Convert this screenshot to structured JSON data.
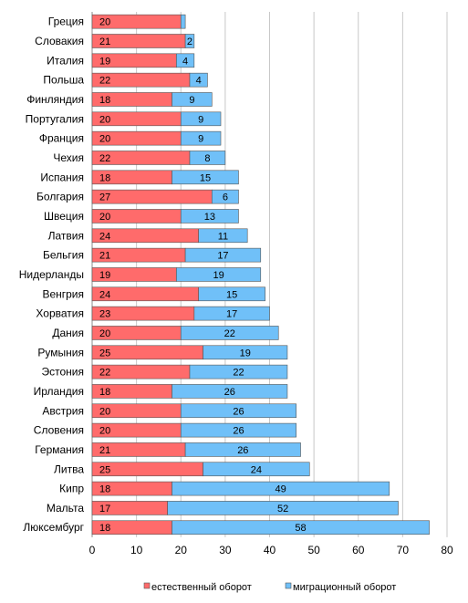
{
  "chart_data": {
    "type": "bar",
    "orientation": "horizontal",
    "stacked": true,
    "categories": [
      "Греция",
      "Словакия",
      "Италия",
      "Польша",
      "Финляндия",
      "Португалия",
      "Франция",
      "Чехия",
      "Испания",
      "Болгария",
      "Швеция",
      "Латвия",
      "Бельгия",
      "Нидерланды",
      "Венгрия",
      "Хорватия",
      "Дания",
      "Румыния",
      "Эстония",
      "Ирландия",
      "Австрия",
      "Словения",
      "Германия",
      "Литва",
      "Кипр",
      "Мальта",
      "Люксембург"
    ],
    "series": [
      {
        "name": "естественный оборот",
        "color": "#ff6b6b",
        "values": [
          20,
          21,
          19,
          22,
          18,
          20,
          20,
          22,
          18,
          27,
          20,
          24,
          21,
          19,
          24,
          23,
          20,
          25,
          22,
          18,
          20,
          20,
          21,
          25,
          18,
          17,
          18
        ]
      },
      {
        "name": "миграционный оборот",
        "color": "#70c0f8",
        "values": [
          1,
          2,
          4,
          4,
          9,
          9,
          9,
          8,
          15,
          6,
          13,
          11,
          17,
          19,
          15,
          17,
          22,
          19,
          22,
          26,
          26,
          26,
          26,
          24,
          49,
          52,
          58
        ]
      }
    ],
    "data_labels": {
      "естественный оборот": [
        "20",
        "21",
        "19",
        "22",
        "18",
        "20",
        "20",
        "22",
        "18",
        "27",
        "20",
        "24",
        "21",
        "19",
        "24",
        "23",
        "20",
        "25",
        "22",
        "18",
        "20",
        "20",
        "21",
        "25",
        "18",
        "17",
        "18"
      ],
      "миграционный оборот": [
        "",
        "2",
        "4",
        "4",
        "9",
        "9",
        "9",
        "8",
        "15",
        "6",
        "13",
        "11",
        "17",
        "19",
        "15",
        "17",
        "22",
        "19",
        "22",
        "26",
        "26",
        "26",
        "26",
        "24",
        "49",
        "52",
        "58"
      ]
    },
    "xlim": [
      0,
      80
    ],
    "xticks": [
      "0",
      "10",
      "20",
      "30",
      "40",
      "50",
      "60",
      "70",
      "80"
    ],
    "grid": "vertical",
    "legend_position": "bottom",
    "title": "",
    "xlabel": "",
    "ylabel": ""
  }
}
